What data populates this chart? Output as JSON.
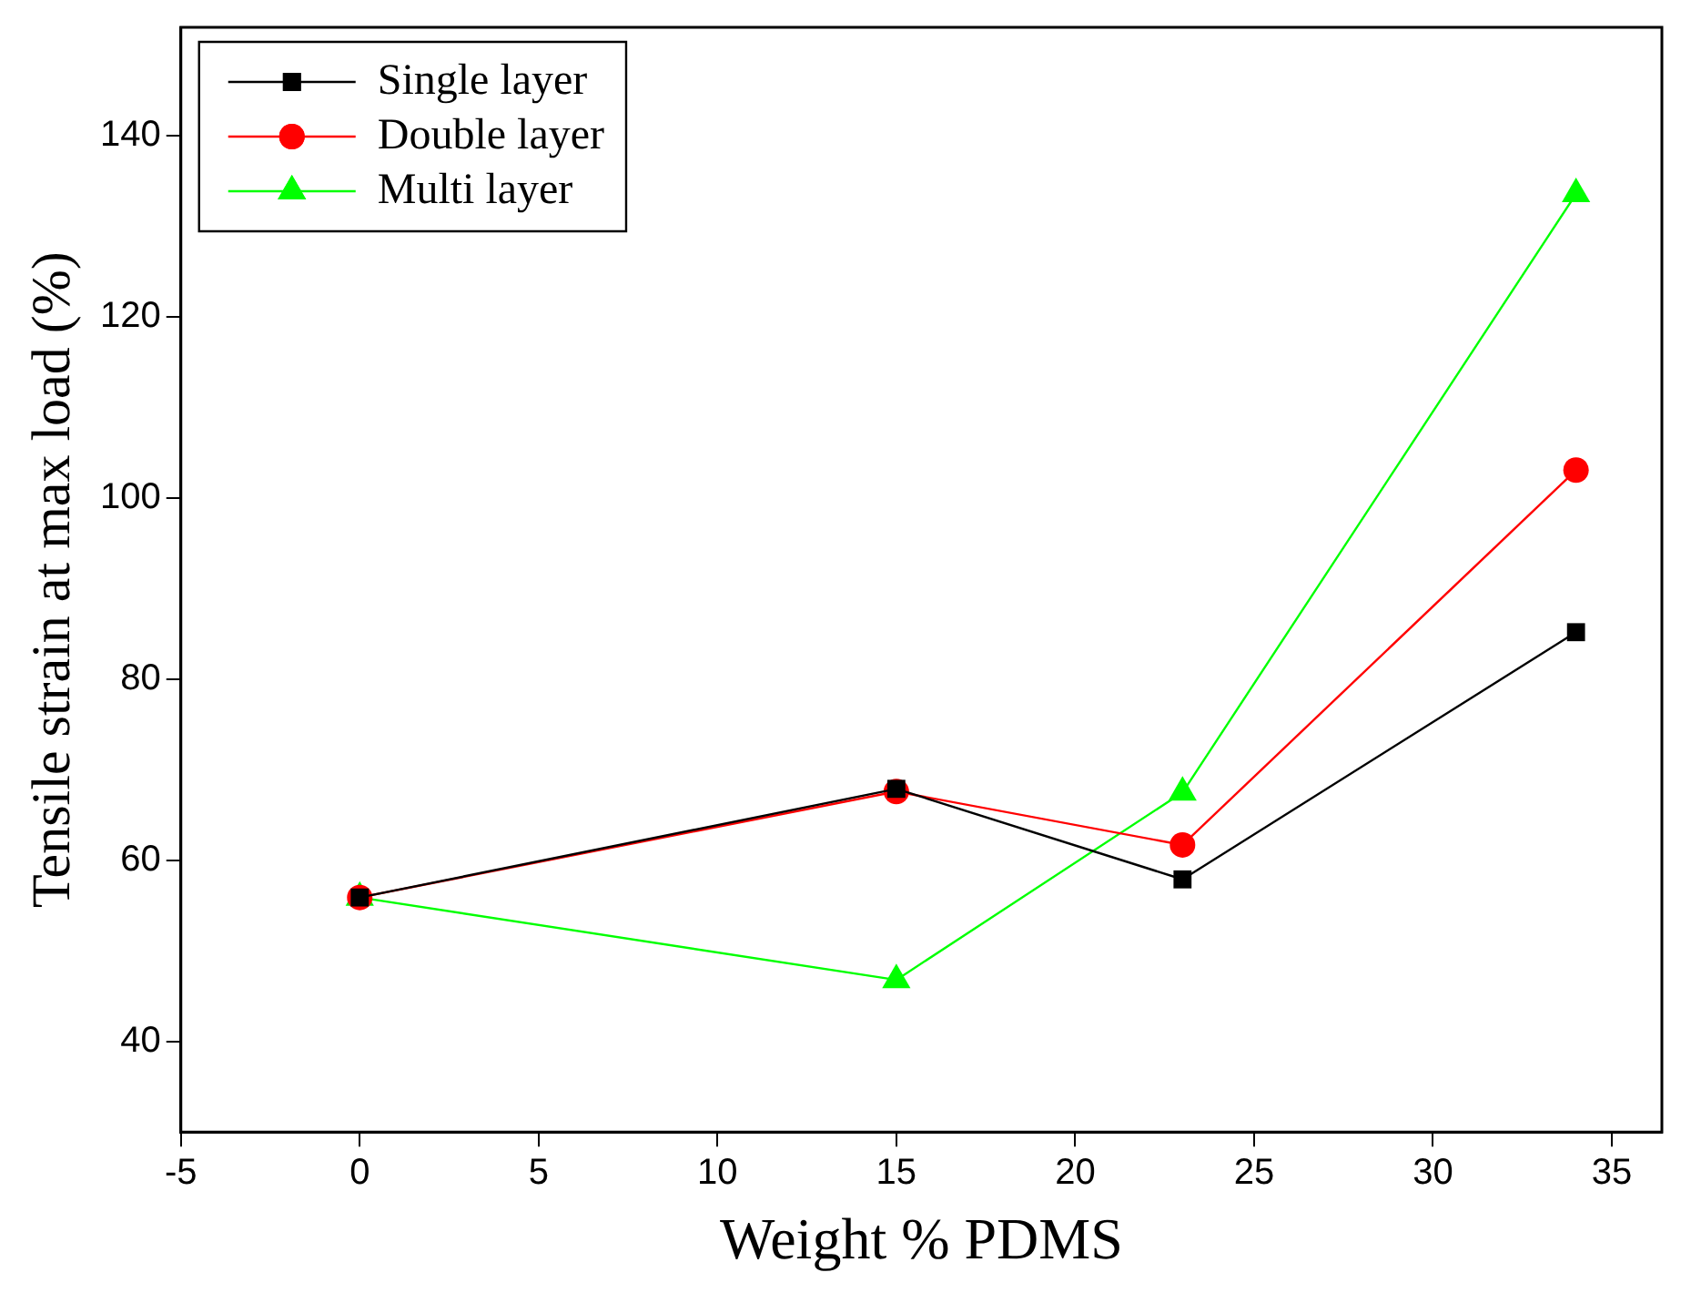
{
  "chart_data": {
    "type": "line",
    "xlabel": "Weight % PDMS",
    "ylabel": "Tensile strain at max load (%)",
    "x": [
      0,
      15,
      23,
      34
    ],
    "series": [
      {
        "name": "Single layer",
        "color": "#000000",
        "marker": "square",
        "values": [
          55.9,
          67.9,
          57.9,
          85.2
        ]
      },
      {
        "name": "Double layer",
        "color": "#ff0000",
        "marker": "circle",
        "values": [
          55.9,
          67.6,
          61.7,
          103.1
        ]
      },
      {
        "name": "Multi layer",
        "color": "#00ff00",
        "marker": "triangle",
        "values": [
          55.9,
          46.8,
          67.5,
          133.6
        ]
      }
    ],
    "xlim": [
      -5,
      36.4
    ],
    "xticks": [
      -5,
      0,
      5,
      10,
      15,
      20,
      25,
      30,
      35
    ],
    "ylim": [
      30,
      152
    ],
    "yticks": [
      40,
      60,
      80,
      100,
      120,
      140
    ],
    "grid": false,
    "legend": "top left",
    "line_style": "solid"
  }
}
